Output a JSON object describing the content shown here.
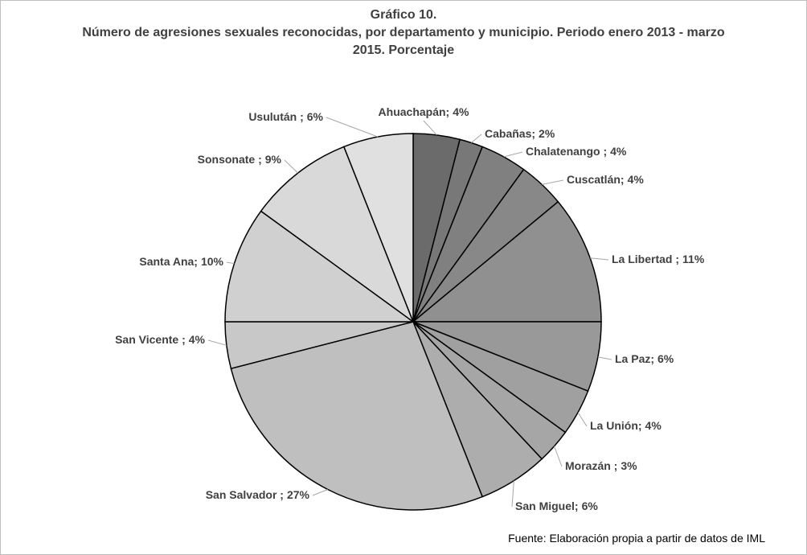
{
  "chart_data": {
    "type": "pie",
    "title": "Gráfico 10.",
    "subtitle": "Número de agresiones sexuales reconocidas, por departamento y municipio. Periodo enero 2013 - marzo 2015. Porcentaje",
    "categories": [
      "Ahuachapán;",
      "Cabañas;",
      "Chalatenango ;",
      "Cuscatlán;",
      "La Libertad ;",
      "La Paz;",
      "La Unión;",
      "Morazán ;",
      "San Miguel;",
      "San Salvador ;",
      "San Vicente ;",
      "Santa Ana;",
      "Sonsonate ;",
      "Usulután ;"
    ],
    "values": [
      4,
      2,
      4,
      4,
      11,
      6,
      4,
      3,
      6,
      27,
      4,
      10,
      9,
      6
    ],
    "value_labels": [
      "4%",
      "2%",
      "4%",
      "4%",
      "11%",
      "6%",
      "4%",
      "3%",
      "6%",
      "27%",
      "4%",
      "10%",
      "9%",
      "6%"
    ],
    "colors": [
      "#6b6b6b",
      "#787878",
      "#808080",
      "#888888",
      "#909090",
      "#999999",
      "#a0a0a0",
      "#a6a6a6",
      "#adadad",
      "#bfbfbf",
      "#c8c8c8",
      "#d0d0d0",
      "#d9d9d9",
      "#e0e0e0"
    ],
    "source": "Fuente: Elaboración propia a partir de datos de IML"
  }
}
